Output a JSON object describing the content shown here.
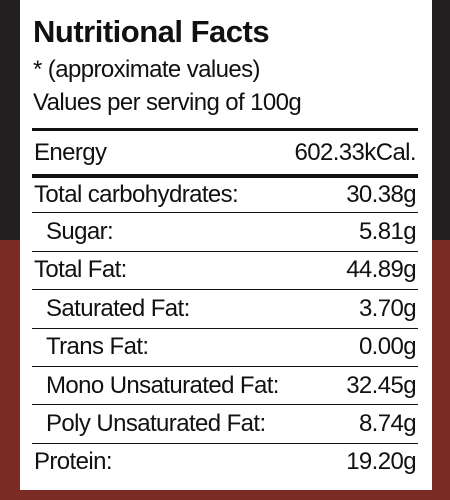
{
  "title": "Nutritional Facts",
  "notes": [
    "* (approximate values)",
    "Values per serving of 100g"
  ],
  "energy": {
    "label": "Energy",
    "value": "602.33kCal."
  },
  "nutrients": [
    {
      "label": "Total carbohydrates:",
      "value": "30.38g",
      "components": [
        {
          "label": "Sugar:",
          "value": "5.81g"
        }
      ]
    },
    {
      "label": "Total Fat:",
      "value": "44.89g",
      "components": [
        {
          "label": "Saturated Fat:",
          "value": "3.70g"
        },
        {
          "label": "Trans Fat:",
          "value": "0.00g"
        },
        {
          "label": "Mono Unsaturated Fat:",
          "value": "32.45g"
        },
        {
          "label": "Poly Unsaturated Fat:",
          "value": "8.74g"
        }
      ]
    },
    {
      "label": "Protein:",
      "value": "19.20g",
      "components": []
    }
  ]
}
